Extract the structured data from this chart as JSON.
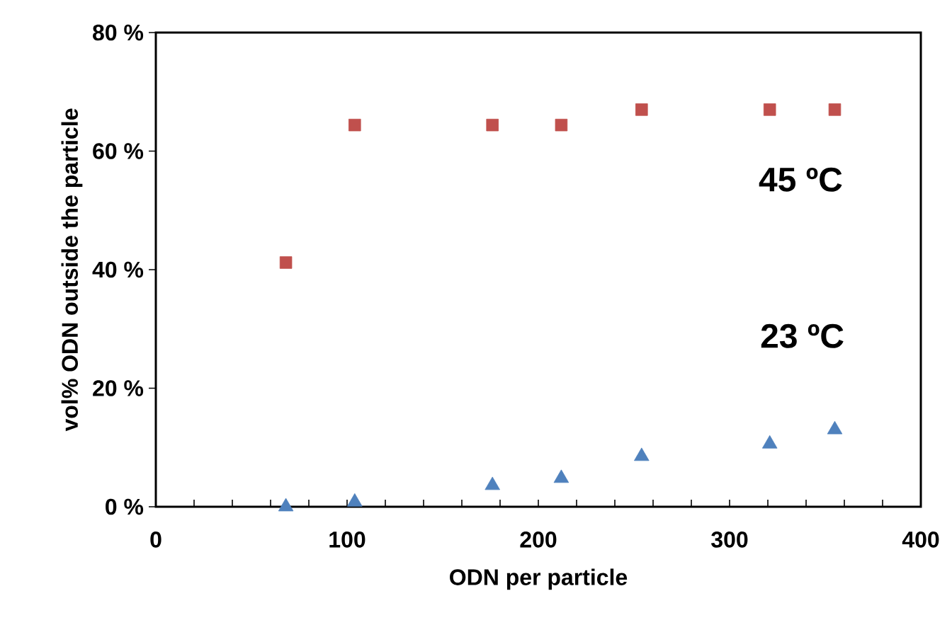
{
  "chart_data": {
    "type": "scatter",
    "xlabel": "ODN per particle",
    "ylabel": "vol% ODN  outside  the particle",
    "xlim": [
      0,
      400
    ],
    "ylim": [
      0,
      80
    ],
    "xticks": [
      0,
      100,
      200,
      300,
      400
    ],
    "yticks": [
      {
        "value": 0,
        "label": "0 %"
      },
      {
        "value": 20,
        "label": "20 %"
      },
      {
        "value": 40,
        "label": "40 %"
      },
      {
        "value": 60,
        "label": "60 %"
      },
      {
        "value": 80,
        "label": "80 %"
      }
    ],
    "grid": false,
    "legend": false,
    "series": [
      {
        "name": "45 ºC",
        "color": "#c0504d",
        "marker": "square",
        "x": [
          68,
          104,
          176,
          212,
          254,
          321,
          355
        ],
        "values": [
          41.2,
          64.4,
          64.4,
          64.4,
          67.0,
          67.0,
          67.0
        ]
      },
      {
        "name": "23 ºC",
        "color": "#4f81bd",
        "marker": "triangle",
        "x": [
          68,
          104,
          176,
          212,
          254,
          321,
          355
        ],
        "values": [
          0.0,
          0.8,
          3.6,
          4.8,
          8.5,
          10.6,
          13.0
        ]
      }
    ]
  }
}
